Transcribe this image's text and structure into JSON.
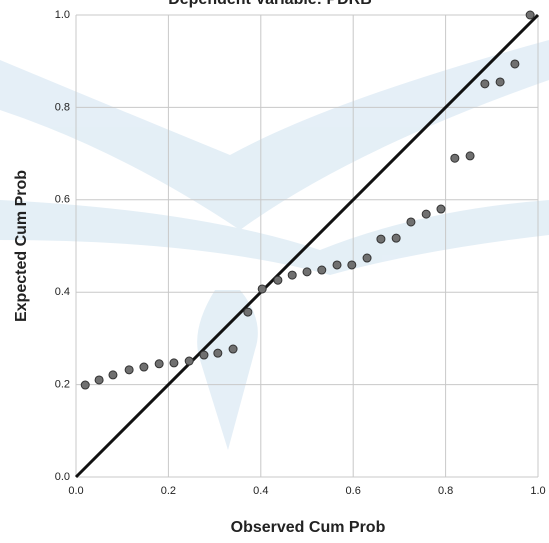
{
  "chart_data": {
    "type": "scatter",
    "title": "Dependent Variable: PDRB",
    "x_label": "Observed Cum Prob",
    "y_label": "Expected Cum Prob",
    "x": [
      0.02,
      0.05,
      0.08,
      0.115,
      0.147,
      0.18,
      0.212,
      0.245,
      0.277,
      0.307,
      0.34,
      0.372,
      0.403,
      0.437,
      0.468,
      0.5,
      0.532,
      0.565,
      0.597,
      0.63,
      0.66,
      0.693,
      0.725,
      0.758,
      0.79,
      0.82,
      0.853,
      0.885,
      0.918,
      0.95,
      0.983
    ],
    "values": [
      0.199,
      0.21,
      0.221,
      0.232,
      0.238,
      0.245,
      0.247,
      0.251,
      0.264,
      0.268,
      0.277,
      0.357,
      0.407,
      0.426,
      0.437,
      0.444,
      0.448,
      0.459,
      0.459,
      0.474,
      0.515,
      0.517,
      0.552,
      0.569,
      0.58,
      0.69,
      0.695,
      0.851,
      0.855,
      0.894,
      1.0
    ],
    "color": "#707070",
    "xlim": [
      0,
      1
    ],
    "ylim": [
      0,
      1
    ],
    "xticks": [
      {
        "value": 0,
        "label": "0.0"
      },
      0.2,
      0.4,
      0.6,
      0.8,
      {
        "value": 1,
        "label": "1.0"
      }
    ],
    "yticks": [
      {
        "value": 0,
        "label": "0.0"
      },
      0.2,
      0.4,
      0.6,
      0.8,
      {
        "value": 1,
        "label": "1.0"
      }
    ],
    "grid": true
  }
}
